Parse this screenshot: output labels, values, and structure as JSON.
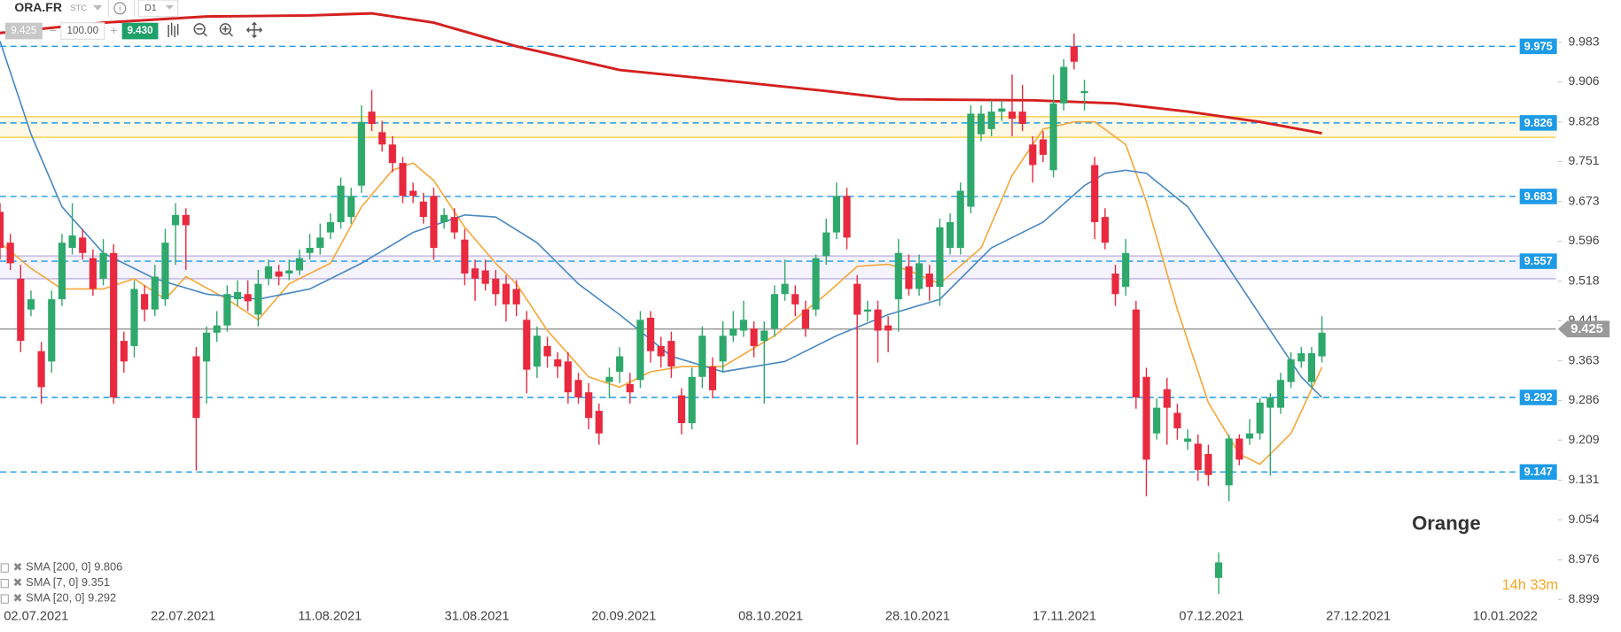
{
  "toolbar": {
    "symbol": "ORA.FR",
    "exchange": "STC",
    "timeframe": "D1",
    "bid": "9.425",
    "volume": "100.00",
    "ask": "9.430"
  },
  "chart_data": {
    "type": "candlestick",
    "title": "Orange",
    "countdown": "14h 33m",
    "categories": [
      "02.07.2021",
      "22.07.2021",
      "11.08.2021",
      "31.08.2021",
      "20.09.2021",
      "08.10.2021",
      "28.10.2021",
      "17.11.2021",
      "07.12.2021",
      "27.12.2021",
      "10.01.2022"
    ],
    "up_color": "#2ea86b",
    "down_color": "#e8293e",
    "ylim": [
      8.88,
      10.065
    ],
    "yticks": [
      9.983,
      9.906,
      9.828,
      9.751,
      9.673,
      9.596,
      9.518,
      9.441,
      9.363,
      9.286,
      9.209,
      9.131,
      9.054,
      8.976,
      8.899
    ],
    "levels": [
      9.975,
      9.826,
      9.683,
      9.557,
      9.292,
      9.147
    ],
    "level_color": "#1e9be6",
    "zones": [
      {
        "from": 9.798,
        "to": 9.838,
        "color": "#f7d96b"
      },
      {
        "from": 9.523,
        "to": 9.567,
        "color": "#c9bfe8"
      }
    ],
    "last_price": 9.425,
    "candles": [
      [
        9.653,
        9.67,
        9.56,
        9.583
      ],
      [
        9.593,
        9.61,
        9.54,
        9.553
      ],
      [
        9.523,
        9.55,
        9.38,
        9.402
      ],
      [
        9.463,
        9.5,
        9.45,
        9.483
      ],
      [
        9.382,
        9.4,
        9.28,
        9.312
      ],
      [
        9.362,
        9.5,
        9.34,
        9.483
      ],
      [
        9.483,
        9.61,
        9.47,
        9.593
      ],
      [
        9.583,
        9.67,
        9.57,
        9.607
      ],
      [
        9.603,
        9.62,
        9.56,
        9.573
      ],
      [
        9.563,
        9.58,
        9.49,
        9.503
      ],
      [
        9.523,
        9.6,
        9.51,
        9.573
      ],
      [
        9.573,
        9.59,
        9.28,
        9.292
      ],
      [
        9.402,
        9.42,
        9.34,
        9.362
      ],
      [
        9.392,
        9.52,
        9.37,
        9.503
      ],
      [
        9.493,
        9.51,
        9.44,
        9.463
      ],
      [
        9.463,
        9.55,
        9.45,
        9.527
      ],
      [
        9.483,
        9.62,
        9.47,
        9.593
      ],
      [
        9.627,
        9.67,
        9.55,
        9.647
      ],
      [
        9.647,
        9.66,
        9.54,
        9.627
      ],
      [
        9.372,
        9.39,
        9.15,
        9.252
      ],
      [
        9.362,
        9.43,
        9.28,
        9.418
      ],
      [
        9.418,
        9.46,
        9.4,
        9.432
      ],
      [
        9.432,
        9.51,
        9.42,
        9.493
      ],
      [
        9.483,
        9.52,
        9.47,
        9.497
      ],
      [
        9.493,
        9.52,
        9.46,
        9.479
      ],
      [
        9.453,
        9.54,
        9.43,
        9.513
      ],
      [
        9.523,
        9.56,
        9.51,
        9.547
      ],
      [
        9.537,
        9.55,
        9.51,
        9.527
      ],
      [
        9.533,
        9.56,
        9.52,
        9.539
      ],
      [
        9.539,
        9.58,
        9.53,
        9.563
      ],
      [
        9.573,
        9.61,
        9.56,
        9.583
      ],
      [
        9.583,
        9.63,
        9.57,
        9.603
      ],
      [
        9.613,
        9.65,
        9.6,
        9.633
      ],
      [
        9.633,
        9.72,
        9.62,
        9.704
      ],
      [
        9.643,
        9.7,
        9.63,
        9.684
      ],
      [
        9.704,
        9.86,
        9.69,
        9.828
      ],
      [
        9.848,
        9.89,
        9.81,
        9.824
      ],
      [
        9.808,
        9.83,
        9.77,
        9.784
      ],
      [
        9.784,
        9.8,
        9.73,
        9.748
      ],
      [
        9.748,
        9.76,
        9.67,
        9.684
      ],
      [
        9.694,
        9.71,
        9.67,
        9.684
      ],
      [
        9.673,
        9.69,
        9.63,
        9.643
      ],
      [
        9.684,
        9.7,
        9.56,
        9.583
      ],
      [
        9.633,
        9.66,
        9.62,
        9.647
      ],
      [
        9.643,
        9.66,
        9.6,
        9.613
      ],
      [
        9.599,
        9.62,
        9.51,
        9.533
      ],
      [
        9.543,
        9.56,
        9.48,
        9.523
      ],
      [
        9.539,
        9.56,
        9.5,
        9.513
      ],
      [
        9.523,
        9.54,
        9.47,
        9.493
      ],
      [
        9.513,
        9.53,
        9.44,
        9.473
      ],
      [
        9.503,
        9.52,
        9.45,
        9.473
      ],
      [
        9.443,
        9.46,
        9.3,
        9.346
      ],
      [
        9.352,
        9.43,
        9.33,
        9.412
      ],
      [
        9.392,
        9.41,
        9.35,
        9.372
      ],
      [
        9.366,
        9.38,
        9.33,
        9.352
      ],
      [
        9.362,
        9.38,
        9.28,
        9.302
      ],
      [
        9.326,
        9.34,
        9.28,
        9.292
      ],
      [
        9.302,
        9.32,
        9.23,
        9.252
      ],
      [
        9.266,
        9.28,
        9.2,
        9.222
      ],
      [
        9.322,
        9.35,
        9.29,
        9.332
      ],
      [
        9.342,
        9.39,
        9.32,
        9.372
      ],
      [
        9.318,
        9.34,
        9.28,
        9.302
      ],
      [
        9.326,
        9.46,
        9.31,
        9.443
      ],
      [
        9.447,
        9.46,
        9.36,
        9.382
      ],
      [
        9.392,
        9.41,
        9.35,
        9.372
      ],
      [
        9.402,
        9.42,
        9.33,
        9.352
      ],
      [
        9.296,
        9.31,
        9.22,
        9.242
      ],
      [
        9.242,
        9.35,
        9.23,
        9.332
      ],
      [
        9.332,
        9.43,
        9.31,
        9.412
      ],
      [
        9.352,
        9.37,
        9.29,
        9.306
      ],
      [
        9.362,
        9.44,
        9.34,
        9.412
      ],
      [
        9.412,
        9.46,
        9.4,
        9.426
      ],
      [
        9.422,
        9.48,
        9.41,
        9.443
      ],
      [
        9.426,
        9.44,
        9.37,
        9.392
      ],
      [
        9.402,
        9.44,
        9.28,
        9.422
      ],
      [
        9.426,
        9.51,
        9.41,
        9.493
      ],
      [
        9.493,
        9.56,
        9.48,
        9.513
      ],
      [
        9.493,
        9.51,
        9.45,
        9.473
      ],
      [
        9.463,
        9.48,
        9.41,
        9.426
      ],
      [
        9.463,
        9.57,
        9.45,
        9.563
      ],
      [
        9.567,
        9.64,
        9.55,
        9.613
      ],
      [
        9.613,
        9.71,
        9.6,
        9.684
      ],
      [
        9.684,
        9.7,
        9.58,
        9.603
      ],
      [
        9.513,
        9.53,
        9.2,
        9.453
      ],
      [
        9.459,
        9.48,
        9.44,
        9.463
      ],
      [
        9.463,
        9.48,
        9.36,
        9.422
      ],
      [
        9.432,
        9.45,
        9.38,
        9.422
      ],
      [
        9.483,
        9.6,
        9.42,
        9.573
      ],
      [
        9.547,
        9.57,
        9.49,
        9.503
      ],
      [
        9.503,
        9.57,
        9.49,
        9.553
      ],
      [
        9.533,
        9.55,
        9.48,
        9.507
      ],
      [
        9.507,
        9.64,
        9.47,
        9.623
      ],
      [
        9.583,
        9.65,
        9.57,
        9.633
      ],
      [
        9.583,
        9.71,
        9.57,
        9.694
      ],
      [
        9.663,
        9.86,
        9.65,
        9.844
      ],
      [
        9.804,
        9.86,
        9.79,
        9.844
      ],
      [
        9.814,
        9.87,
        9.8,
        9.848
      ],
      [
        9.848,
        9.87,
        9.83,
        9.854
      ],
      [
        9.848,
        9.92,
        9.8,
        9.834
      ],
      [
        9.848,
        9.9,
        9.81,
        9.824
      ],
      [
        9.784,
        9.8,
        9.71,
        9.744
      ],
      [
        9.794,
        9.81,
        9.75,
        9.764
      ],
      [
        9.734,
        9.92,
        9.72,
        9.864
      ],
      [
        9.864,
        9.95,
        9.85,
        9.935
      ],
      [
        9.975,
        10.0,
        9.93,
        9.945
      ],
      [
        9.884,
        9.91,
        9.85,
        9.888
      ],
      [
        9.744,
        9.76,
        9.6,
        9.633
      ],
      [
        9.643,
        9.66,
        9.58,
        9.593
      ],
      [
        9.533,
        9.55,
        9.47,
        9.493
      ],
      [
        9.507,
        9.6,
        9.49,
        9.573
      ],
      [
        9.463,
        9.48,
        9.27,
        9.292
      ],
      [
        9.332,
        9.35,
        9.1,
        9.171
      ],
      [
        9.222,
        9.29,
        9.21,
        9.272
      ],
      [
        9.308,
        9.33,
        9.2,
        9.272
      ],
      [
        9.262,
        9.28,
        9.21,
        9.232
      ],
      [
        9.206,
        9.23,
        9.19,
        9.212
      ],
      [
        9.202,
        9.22,
        9.13,
        9.151
      ],
      [
        9.182,
        9.2,
        9.12,
        9.141
      ],
      [
        8.941,
        8.99,
        8.91,
        8.971
      ],
      [
        9.121,
        9.22,
        9.09,
        9.212
      ],
      [
        9.212,
        9.22,
        9.16,
        9.171
      ],
      [
        9.212,
        9.25,
        9.2,
        9.222
      ],
      [
        9.222,
        9.29,
        9.21,
        9.282
      ],
      [
        9.272,
        9.3,
        9.14,
        9.292
      ],
      [
        9.272,
        9.34,
        9.26,
        9.326
      ],
      [
        9.322,
        9.38,
        9.31,
        9.366
      ],
      [
        9.362,
        9.39,
        9.35,
        9.378
      ],
      [
        9.322,
        9.39,
        9.31,
        9.378
      ],
      [
        9.372,
        9.45,
        9.36,
        9.418
      ]
    ],
    "indicators": [
      {
        "name": "SMA [200, 0]",
        "value": 9.806,
        "color": "#d42020",
        "x": [
          0,
          10,
          20,
          30,
          36,
          42,
          50,
          60,
          70,
          80,
          87,
          100,
          108,
          115,
          122,
          128
        ],
        "values": [
          10.001,
          10.021,
          10.033,
          10.035,
          10.039,
          10.021,
          9.975,
          9.929,
          9.909,
          9.888,
          9.872,
          9.87,
          9.864,
          9.848,
          9.828,
          9.806
        ]
      },
      {
        "name": "SMA [7, 0]",
        "value": 9.351,
        "color": "#f5a83a",
        "x": [
          0,
          3,
          6,
          10,
          13,
          16,
          18,
          22,
          25,
          28,
          32,
          35,
          38,
          40,
          42,
          45,
          48,
          50,
          53,
          57,
          60,
          63,
          66,
          70,
          75,
          80,
          83,
          86,
          88,
          91,
          95,
          98,
          101,
          104,
          106,
          109,
          111,
          114,
          117,
          120,
          122,
          125,
          128
        ],
        "values": [
          9.593,
          9.543,
          9.503,
          9.503,
          9.523,
          9.483,
          9.527,
          9.483,
          9.443,
          9.513,
          9.553,
          9.663,
          9.734,
          9.748,
          9.714,
          9.623,
          9.553,
          9.513,
          9.422,
          9.332,
          9.312,
          9.342,
          9.352,
          9.352,
          9.412,
          9.493,
          9.547,
          9.551,
          9.539,
          9.513,
          9.583,
          9.724,
          9.814,
          9.828,
          9.828,
          9.784,
          9.673,
          9.463,
          9.282,
          9.182,
          9.162,
          9.222,
          9.351
        ]
      },
      {
        "name": "SMA [20, 0]",
        "value": 9.292,
        "color": "#4a89c2",
        "x": [
          0,
          3,
          6,
          10,
          15,
          20,
          25,
          30,
          35,
          40,
          45,
          48,
          52,
          56,
          60,
          65,
          70,
          76,
          81,
          86,
          91,
          96,
          101,
          105,
          107,
          109,
          111,
          115,
          119,
          123,
          126,
          128
        ],
        "values": [
          9.985,
          9.804,
          9.663,
          9.573,
          9.523,
          9.493,
          9.483,
          9.503,
          9.553,
          9.613,
          9.647,
          9.643,
          9.593,
          9.513,
          9.453,
          9.372,
          9.342,
          9.362,
          9.412,
          9.453,
          9.483,
          9.583,
          9.633,
          9.704,
          9.728,
          9.734,
          9.728,
          9.663,
          9.543,
          9.422,
          9.332,
          9.292
        ]
      }
    ]
  }
}
